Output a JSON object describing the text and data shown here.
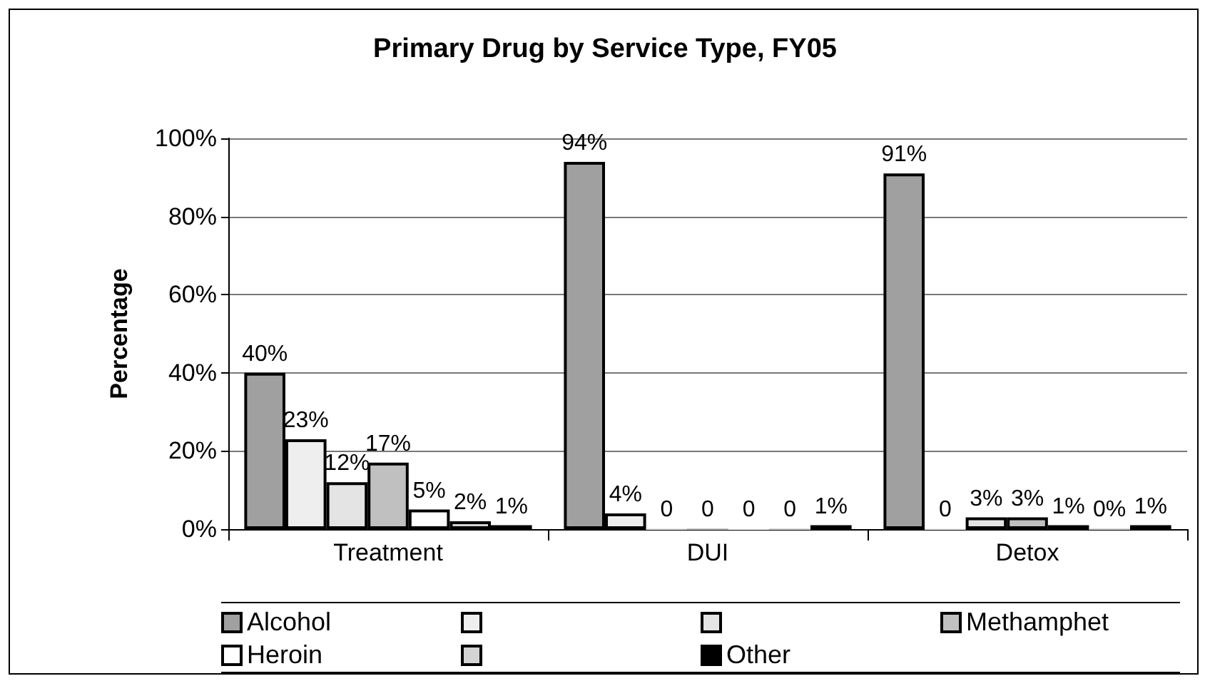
{
  "chart_data": {
    "type": "bar",
    "title": "Primary Drug by Service Type, FY05",
    "ylabel": "Percentage",
    "categories": [
      "Treatment",
      "DUI",
      "Detox"
    ],
    "series": [
      {
        "name": "Alcohol",
        "color": "#a0a0a0",
        "values": [
          40,
          94,
          91
        ],
        "value_labels": [
          "40%",
          "94%",
          "91%"
        ]
      },
      {
        "color": "#eeeeee",
        "values": [
          23,
          4,
          0
        ],
        "value_labels": [
          "23%",
          "4%",
          "0"
        ]
      },
      {
        "color": "#e4e4e4",
        "values": [
          12,
          0,
          3
        ],
        "value_labels": [
          "12%",
          "0",
          "3%"
        ]
      },
      {
        "name": "Methamphet",
        "color": "#c0c0c0",
        "values": [
          17,
          0,
          3
        ],
        "value_labels": [
          "17%",
          "0",
          "3%"
        ]
      },
      {
        "name": "Heroin",
        "color": "#ffffff",
        "values": [
          5,
          0,
          1
        ],
        "value_labels": [
          "5%",
          "0",
          "1%"
        ]
      },
      {
        "color": "#d4d4d4",
        "values": [
          2,
          0,
          0
        ],
        "value_labels": [
          "2%",
          "0",
          "0%"
        ]
      },
      {
        "name": "Other",
        "color": "#000000",
        "values": [
          1,
          1,
          1
        ],
        "value_labels": [
          "1%",
          "1%",
          "1%"
        ]
      }
    ],
    "ylim": [
      0,
      100
    ],
    "yticks": [
      {
        "value": 0,
        "label": "0%"
      },
      {
        "value": 20,
        "label": "20%"
      },
      {
        "value": 40,
        "label": "40%"
      },
      {
        "value": 60,
        "label": "60%"
      },
      {
        "value": 80,
        "label": "80%"
      },
      {
        "value": 100,
        "label": "100%"
      }
    ],
    "grid": "y",
    "legend": "bottom"
  }
}
